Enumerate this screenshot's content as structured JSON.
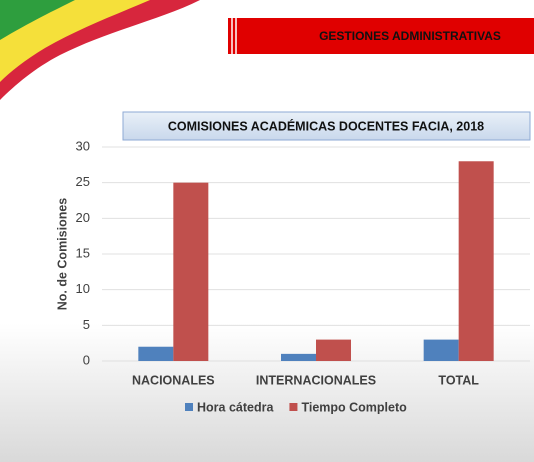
{
  "header": {
    "title": "GESTIONES ADMINISTRATIVAS"
  },
  "chart_data": {
    "type": "bar",
    "title": "COMISIONES ACADÉMICAS DOCENTES FACIA, 2018",
    "y_label": "No. de Comisiones",
    "categories": [
      "NACIONALES",
      "INTERNACIONALES",
      "TOTAL"
    ],
    "series": [
      {
        "name": "Hora cátedra",
        "color": "#4f81bd",
        "values": [
          2,
          1,
          3
        ]
      },
      {
        "name": "Tiempo Completo",
        "color": "#c0504d",
        "values": [
          25,
          3,
          28
        ]
      }
    ],
    "ylim": [
      0,
      30
    ],
    "yticks": [
      0,
      5,
      10,
      15,
      20,
      25,
      30
    ],
    "grid": true,
    "legend": "bottom"
  }
}
